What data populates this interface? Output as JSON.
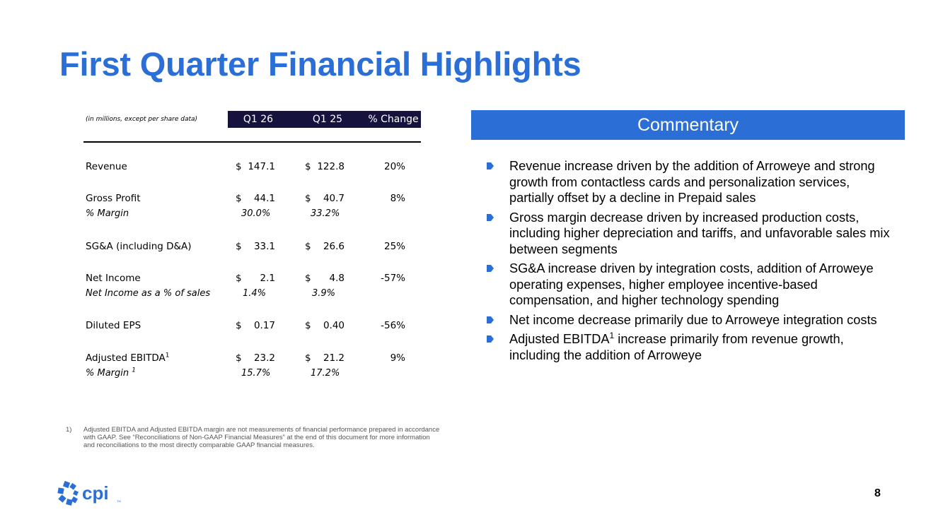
{
  "title": "First Quarter Financial Highlights",
  "table": {
    "units_note": "(in millions, except per share data)",
    "headers": [
      "Q1 26",
      "Q1 25",
      "% Change"
    ],
    "currency_symbol": "$",
    "rows": [
      {
        "label": "Revenue",
        "q1_26": "147.1",
        "q1_25": "122.8",
        "change": "20%"
      },
      {
        "label": "Gross Profit",
        "q1_26": "44.1",
        "q1_25": "40.7",
        "change": "8%",
        "sub_label": "% Margin",
        "sub_q1_26": "30.0%",
        "sub_q1_25": "33.2%"
      },
      {
        "label": "SG&A (including D&A)",
        "q1_26": "33.1",
        "q1_25": "26.6",
        "change": "25%"
      },
      {
        "label": "Net Income",
        "q1_26": "2.1",
        "q1_25": "4.8",
        "change": "-57%",
        "sub_label": "Net Income as a % of sales",
        "sub_q1_26": "1.4%",
        "sub_q1_25": "3.9%"
      },
      {
        "label": "Diluted EPS",
        "q1_26": "0.17",
        "q1_25": "0.40",
        "change": "-56%"
      },
      {
        "label": "Adjusted EBITDA",
        "label_sup": "1",
        "q1_26": "23.2",
        "q1_25": "21.2",
        "change": "9%",
        "sub_label": "% Margin ",
        "sub_label_sup": "1",
        "sub_q1_26": "15.7%",
        "sub_q1_25": "17.2%"
      }
    ]
  },
  "commentary": {
    "heading": "Commentary",
    "accent_color": "#2b6fd6",
    "bullets": [
      {
        "text": "Revenue increase driven by the addition of Arroweye and strong growth from contactless cards and personalization services, partially offset by a decline in Prepaid sales"
      },
      {
        "text": "Gross margin decrease driven by increased production costs, including higher depreciation and tariffs, and unfavorable sales mix between segments"
      },
      {
        "text": "SG&A increase driven by integration costs, addition of Arroweye operating expenses, higher employee incentive-based compensation, and higher technology spending"
      },
      {
        "text": "Net income decrease primarily due to Arroweye integration costs"
      },
      {
        "pre": "Adjusted EBITDA",
        "sup": "1",
        "post": " increase primarily from revenue growth, including the addition of Arroweye"
      }
    ]
  },
  "footnote": {
    "number": "1)",
    "text": "Adjusted EBITDA and Adjusted EBITDA margin are not measurements of financial performance prepared in accordance with GAAP. See “Reconciliations of Non-GAAP Financial Measures” at the end of this document for more information and reconciliations to the most directly comparable GAAP financial measures."
  },
  "logo": {
    "text": "cpi",
    "mark": "TM",
    "color": "#2b6fd6"
  },
  "page_number": "8"
}
